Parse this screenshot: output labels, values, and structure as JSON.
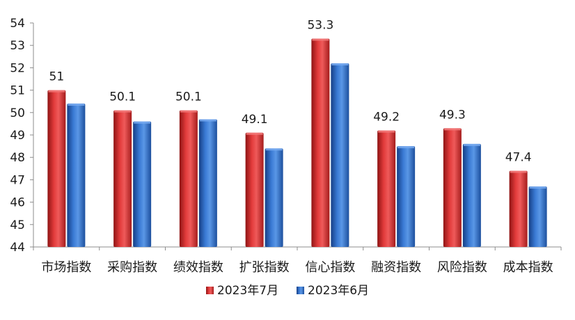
{
  "chart_data": {
    "type": "bar",
    "title": "",
    "xlabel": "",
    "ylabel": "",
    "categories": [
      "市场指数",
      "采购指数",
      "绩效指数",
      "扩张指数",
      "信心指数",
      "融资指数",
      "风险指数",
      "成本指数"
    ],
    "series": [
      {
        "name": "2023年7月",
        "values": [
          51.0,
          50.1,
          50.1,
          49.1,
          53.3,
          49.2,
          49.3,
          47.4
        ],
        "color": "#e03a3a"
      },
      {
        "name": "2023年6月",
        "values": [
          50.4,
          49.6,
          49.7,
          48.4,
          52.2,
          48.5,
          48.6,
          46.7
        ],
        "color": "#3c7fd6"
      }
    ],
    "data_labels": [
      "51",
      "50.1",
      "50.1",
      "49.1",
      "53.3",
      "49.2",
      "49.3",
      "47.4"
    ],
    "ylim": [
      44,
      54
    ],
    "yticks": [
      "44",
      "45",
      "46",
      "47",
      "48",
      "49",
      "50",
      "51",
      "52",
      "53",
      "54"
    ],
    "grid": false,
    "legend_position": "bottom"
  }
}
